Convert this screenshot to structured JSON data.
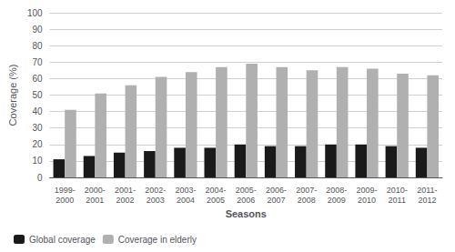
{
  "chart_data": {
    "type": "bar",
    "categories": [
      "1999-\n2000",
      "2000-\n2001",
      "2001-\n2002",
      "2002-\n2003",
      "2003-\n2004",
      "2004-\n2005",
      "2005-\n2006",
      "2006-\n2007",
      "2007-\n2008",
      "2008-\n2009",
      "2009-\n2010",
      "2010-\n2011",
      "2011-\n2012"
    ],
    "series": [
      {
        "name": "Global coverage",
        "color": "#1a1a1a",
        "values": [
          11,
          13,
          15,
          16,
          18,
          18,
          20,
          19,
          19,
          20,
          20,
          19,
          18
        ]
      },
      {
        "name": "Coverage in elderly",
        "color": "#b0b0b0",
        "values": [
          41,
          51,
          56,
          61,
          64,
          67,
          69,
          67,
          65,
          67,
          66,
          63,
          62
        ]
      }
    ],
    "xlabel": "Seasons",
    "ylabel": "Coverage (%)",
    "ylim": [
      0,
      100
    ],
    "yticks": [
      0,
      10,
      20,
      30,
      40,
      50,
      60,
      70,
      80,
      90,
      100
    ],
    "grid": true,
    "legend": "lower left"
  }
}
